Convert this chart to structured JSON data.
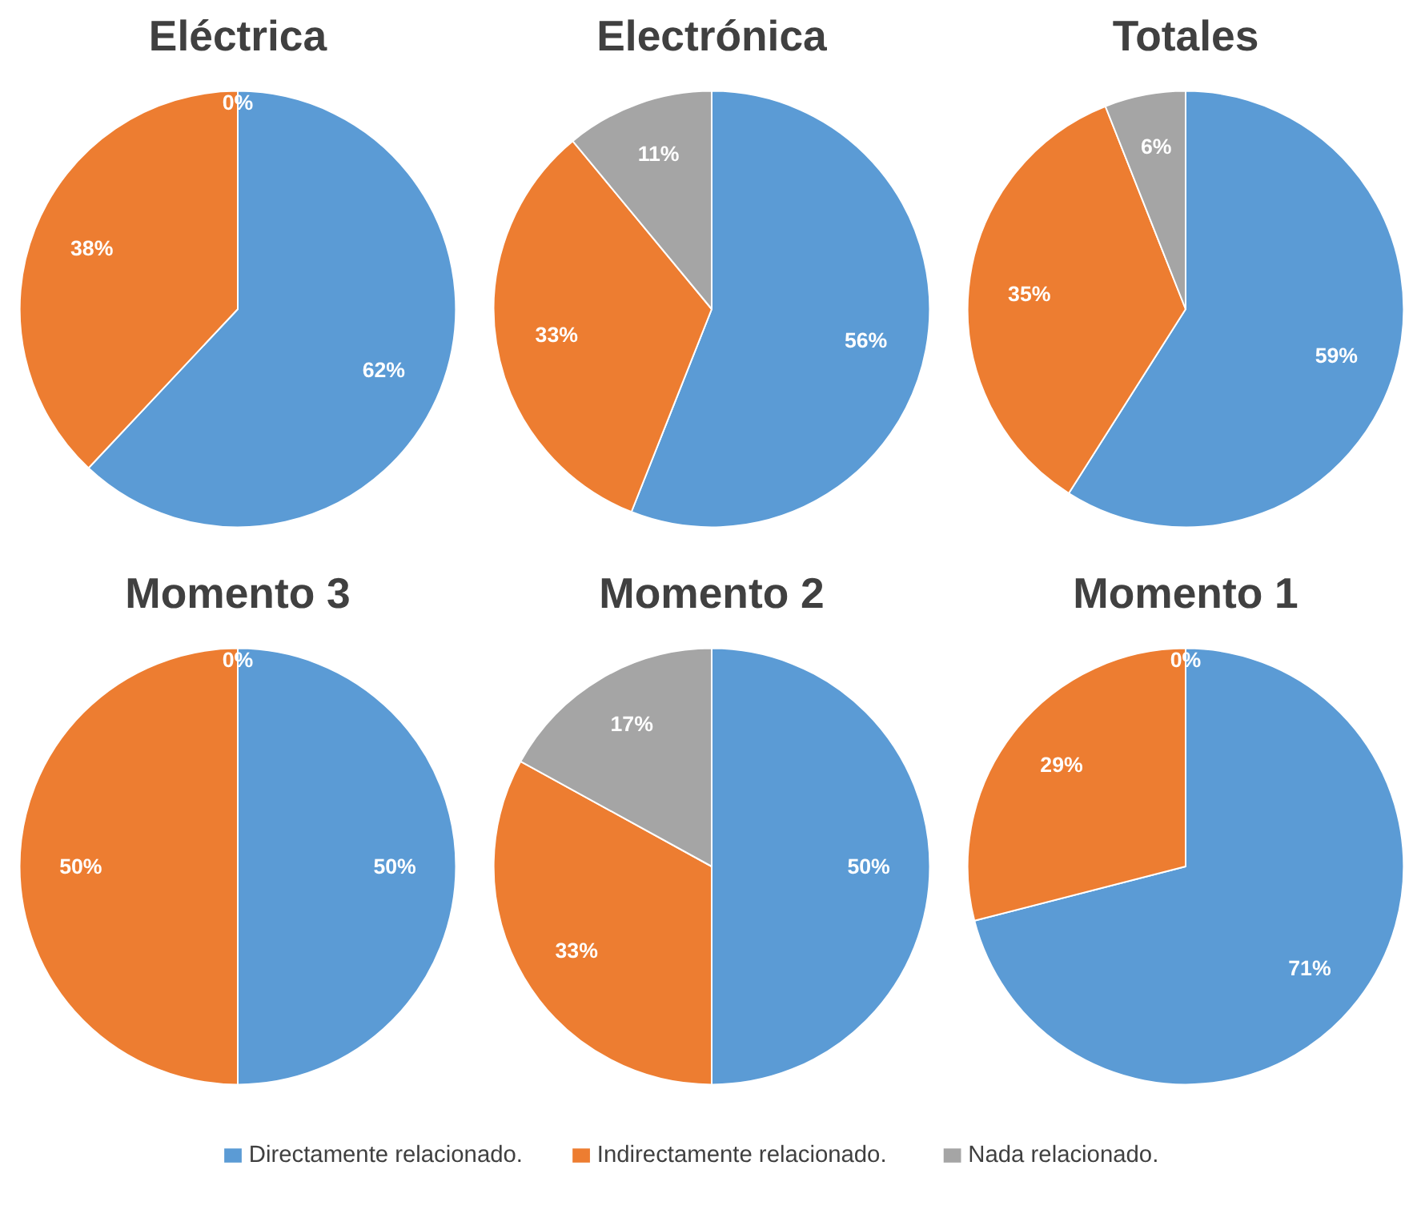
{
  "chart_data": [
    {
      "type": "pie",
      "title": "Eléctrica",
      "categories": [
        "Directamente relacionado.",
        "Indirectamente relacionado.",
        "Nada relacionado."
      ],
      "values": [
        62,
        38,
        0
      ],
      "colors": [
        "#5b9bd5",
        "#ed7d31",
        "#a5a5a5"
      ],
      "value_labels": [
        "62%",
        "38%",
        "0%"
      ],
      "legend": "bottom"
    },
    {
      "type": "pie",
      "title": "Electrónica",
      "categories": [
        null,
        null,
        null
      ],
      "values": [
        56,
        33,
        11
      ],
      "colors": [
        "#5b9bd5",
        "#ed7d31",
        "#a5a5a5"
      ],
      "value_labels": [
        "56%",
        "33%",
        "11%"
      ]
    },
    {
      "type": "pie",
      "title": "Totales",
      "categories": [
        null,
        null,
        null
      ],
      "values": [
        59,
        35,
        6
      ],
      "colors": [
        "#5b9bd5",
        "#ed7d31",
        "#a5a5a5"
      ],
      "value_labels": [
        "59%",
        "35%",
        "6%"
      ]
    },
    {
      "type": "pie",
      "title": "Momento 3",
      "categories": [
        null,
        null,
        null
      ],
      "values": [
        50,
        50,
        0
      ],
      "colors": [
        "#5b9bd5",
        "#ed7d31",
        "#a5a5a5"
      ],
      "value_labels": [
        "50%",
        "50%",
        "0%"
      ]
    },
    {
      "type": "pie",
      "title": "Momento 2",
      "categories": [
        null,
        null,
        null
      ],
      "values": [
        50,
        33,
        17
      ],
      "colors": [
        "#5b9bd5",
        "#ed7d31",
        "#a5a5a5"
      ],
      "value_labels": [
        "50%",
        "33%",
        "17%"
      ]
    },
    {
      "type": "pie",
      "title": "Momento 1",
      "categories": [
        null,
        null,
        null
      ],
      "values": [
        71,
        29,
        0
      ],
      "colors": [
        "#5b9bd5",
        "#ed7d31",
        "#a5a5a5"
      ],
      "value_labels": [
        "71%",
        "29%",
        "0%"
      ]
    }
  ]
}
